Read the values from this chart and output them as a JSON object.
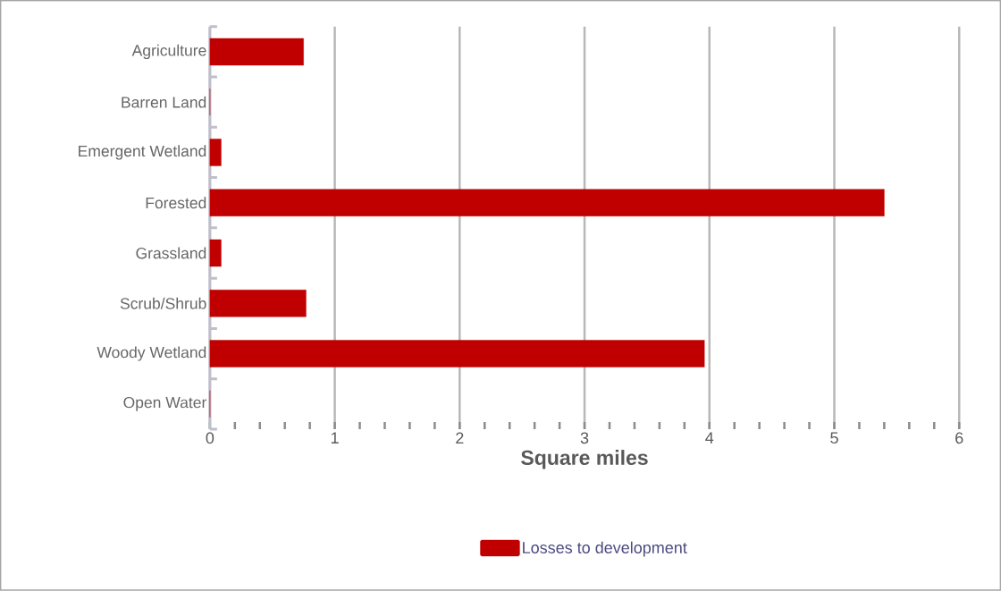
{
  "chart_data": {
    "type": "bar",
    "orientation": "horizontal",
    "xlabel": "Square miles",
    "categories": [
      "Agriculture",
      "Barren Land",
      "Emergent Wetland",
      "Forested",
      "Grassland",
      "Scrub/Shrub",
      "Woody Wetland",
      "Open Water"
    ],
    "series": [
      {
        "name": "Losses to development",
        "color": "#c00000",
        "values": [
          0.75,
          0,
          0.09,
          5.4,
          0.09,
          0.77,
          3.96,
          0
        ]
      }
    ],
    "xlim": [
      0,
      6
    ],
    "xticks": [
      0,
      1,
      2,
      3,
      4,
      5,
      6
    ],
    "grid": "x",
    "legend": "bottom"
  }
}
